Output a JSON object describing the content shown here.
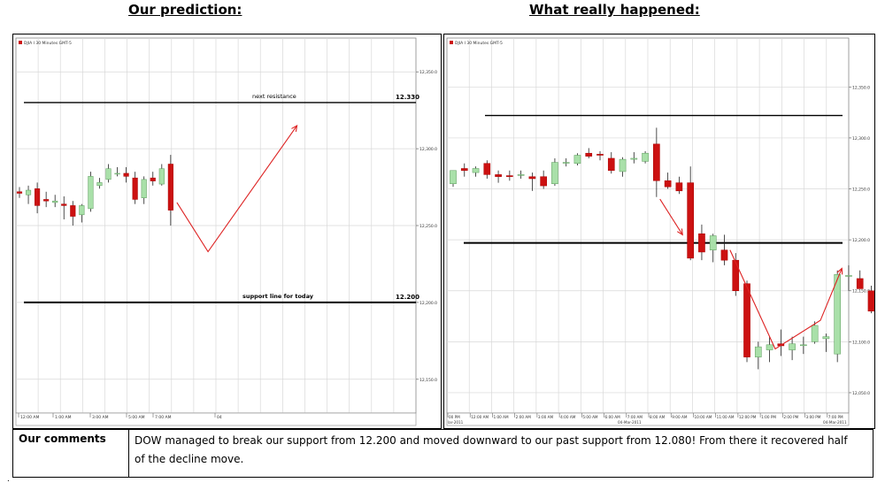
{
  "titles": {
    "left": "Our prediction:",
    "right": "What really happened:"
  },
  "comments": {
    "label": "Our comments",
    "text": "DOW managed to break our support from 12.200 and moved downward to our past support from 12.080! From there it recovered half of the decline move."
  },
  "colors": {
    "up": "#a9e0a9",
    "down": "#cc1111",
    "trend_arrow": "#dd2222",
    "grid": "#d8d8d8",
    "level_line": "#000000"
  },
  "chart_data": [
    {
      "type": "candlestick",
      "title": "Our prediction:",
      "instrument_label": "DJIA I 30 Minutes GMT-5",
      "y_ticks": [
        "12,350.0",
        "12,300.0",
        "12,250.0",
        "12,200.0",
        "12,150.0"
      ],
      "ylim": [
        12128,
        12372
      ],
      "x_ticks": [
        "12:00 AM",
        "1:00 AM",
        "3:00 AM",
        "5:00 AM",
        "7:00 AM",
        "04"
      ],
      "candles": [
        {
          "o": 12272,
          "h": 12275,
          "l": 12268,
          "c": 12271
        },
        {
          "o": 12270,
          "h": 12276,
          "l": 12264,
          "c": 12273
        },
        {
          "o": 12274,
          "h": 12278,
          "l": 12258,
          "c": 12263
        },
        {
          "o": 12267,
          "h": 12272,
          "l": 12262,
          "c": 12266
        },
        {
          "o": 12265,
          "h": 12270,
          "l": 12262,
          "c": 12266
        },
        {
          "o": 12264,
          "h": 12269,
          "l": 12254,
          "c": 12263
        },
        {
          "o": 12263,
          "h": 12266,
          "l": 12250,
          "c": 12256
        },
        {
          "o": 12257,
          "h": 12264,
          "l": 12252,
          "c": 12263
        },
        {
          "o": 12261,
          "h": 12285,
          "l": 12259,
          "c": 12282
        },
        {
          "o": 12276,
          "h": 12281,
          "l": 12274,
          "c": 12278
        },
        {
          "o": 12280,
          "h": 12290,
          "l": 12278,
          "c": 12287
        },
        {
          "o": 12284,
          "h": 12288,
          "l": 12282,
          "c": 12284
        },
        {
          "o": 12284,
          "h": 12288,
          "l": 12278,
          "c": 12282
        },
        {
          "o": 12281,
          "h": 12285,
          "l": 12264,
          "c": 12267
        },
        {
          "o": 12268,
          "h": 12282,
          "l": 12264,
          "c": 12280
        },
        {
          "o": 12281,
          "h": 12285,
          "l": 12276,
          "c": 12279
        },
        {
          "o": 12277,
          "h": 12290,
          "l": 12276,
          "c": 12287
        },
        {
          "o": 12290,
          "h": 12296,
          "l": 12250,
          "c": 12260
        }
      ],
      "levels": [
        {
          "value": 12330,
          "label": "next resistance",
          "value_label": "12.330",
          "label_weight": "normal"
        },
        {
          "value": 12200,
          "label": "support line for today",
          "value_label": "12.200",
          "label_weight": "bold"
        }
      ],
      "trend_path": [
        {
          "i": 17.7,
          "y": 12265
        },
        {
          "i": 21.2,
          "y": 12233
        },
        {
          "i": 31.2,
          "y": 12315
        }
      ]
    },
    {
      "type": "candlestick",
      "title": "What really happened:",
      "instrument_label": "DJIA I 30 Minutes GMT-5",
      "y_ticks": [
        "12,350.0",
        "12,300.0",
        "12,250.0",
        "12,200.0",
        "12,150.0",
        "12,100.0",
        "12,050.0"
      ],
      "ylim": [
        12030,
        12398
      ],
      "x_ticks": [
        "00 PM",
        "12:00 AM",
        "1:00 AM",
        "2:00 AM",
        "3:00 AM",
        "4:00 AM",
        "5:00 AM",
        "6:00 AM",
        "7:00 AM",
        "8:00 AM",
        "9:00 AM",
        "10:00 AM",
        "11:00 AM",
        "12:00 PM",
        "1:00 PM",
        "2:00 PM",
        "3:00 PM",
        "7:00 PM"
      ],
      "x_subticks": [
        "lar-2011",
        "04-Mar-2011",
        "04-Mar-2011"
      ],
      "candles": [
        {
          "o": 12255,
          "h": 12265,
          "l": 12252,
          "c": 12268
        },
        {
          "o": 12270,
          "h": 12275,
          "l": 12262,
          "c": 12268
        },
        {
          "o": 12266,
          "h": 12272,
          "l": 12262,
          "c": 12270
        },
        {
          "o": 12275,
          "h": 12278,
          "l": 12260,
          "c": 12264
        },
        {
          "o": 12264,
          "h": 12268,
          "l": 12256,
          "c": 12262
        },
        {
          "o": 12263,
          "h": 12268,
          "l": 12258,
          "c": 12262
        },
        {
          "o": 12264,
          "h": 12268,
          "l": 12260,
          "c": 12264
        },
        {
          "o": 12262,
          "h": 12266,
          "l": 12248,
          "c": 12260
        },
        {
          "o": 12262,
          "h": 12268,
          "l": 12250,
          "c": 12253
        },
        {
          "o": 12255,
          "h": 12280,
          "l": 12253,
          "c": 12276
        },
        {
          "o": 12276,
          "h": 12280,
          "l": 12272,
          "c": 12276
        },
        {
          "o": 12275,
          "h": 12285,
          "l": 12273,
          "c": 12283
        },
        {
          "o": 12285,
          "h": 12290,
          "l": 12280,
          "c": 12282
        },
        {
          "o": 12284,
          "h": 12287,
          "l": 12278,
          "c": 12283
        },
        {
          "o": 12280,
          "h": 12286,
          "l": 12265,
          "c": 12268
        },
        {
          "o": 12267,
          "h": 12281,
          "l": 12262,
          "c": 12279
        },
        {
          "o": 12279,
          "h": 12286,
          "l": 12275,
          "c": 12280
        },
        {
          "o": 12277,
          "h": 12287,
          "l": 12275,
          "c": 12285
        },
        {
          "o": 12294,
          "h": 12310,
          "l": 12242,
          "c": 12258
        },
        {
          "o": 12258,
          "h": 12266,
          "l": 12250,
          "c": 12252
        },
        {
          "o": 12256,
          "h": 12262,
          "l": 12245,
          "c": 12248
        },
        {
          "o": 12256,
          "h": 12272,
          "l": 12180,
          "c": 12182
        },
        {
          "o": 12206,
          "h": 12215,
          "l": 12180,
          "c": 12188
        },
        {
          "o": 12190,
          "h": 12206,
          "l": 12178,
          "c": 12204
        },
        {
          "o": 12190,
          "h": 12205,
          "l": 12175,
          "c": 12180
        },
        {
          "o": 12180,
          "h": 12187,
          "l": 12145,
          "c": 12150
        },
        {
          "o": 12157,
          "h": 12160,
          "l": 12080,
          "c": 12085
        },
        {
          "o": 12085,
          "h": 12100,
          "l": 12073,
          "c": 12095
        },
        {
          "o": 12092,
          "h": 12105,
          "l": 12080,
          "c": 12097
        },
        {
          "o": 12098,
          "h": 12112,
          "l": 12086,
          "c": 12096
        },
        {
          "o": 12092,
          "h": 12105,
          "l": 12082,
          "c": 12098
        },
        {
          "o": 12097,
          "h": 12105,
          "l": 12088,
          "c": 12097
        },
        {
          "o": 12100,
          "h": 12120,
          "l": 12098,
          "c": 12116
        },
        {
          "o": 12103,
          "h": 12108,
          "l": 12090,
          "c": 12105
        },
        {
          "o": 12088,
          "h": 12170,
          "l": 12080,
          "c": 12166
        },
        {
          "o": 12165,
          "h": 12175,
          "l": 12150,
          "c": 12165
        },
        {
          "o": 12162,
          "h": 12170,
          "l": 12152,
          "c": 12152
        },
        {
          "o": 12150,
          "h": 12155,
          "l": 12128,
          "c": 12130
        }
      ],
      "levels": [
        {
          "value": 12322,
          "label": "",
          "value_label": "",
          "label_weight": "normal"
        },
        {
          "value": 12197,
          "label": "",
          "value_label": "",
          "label_weight": "normal"
        }
      ],
      "trend_path": [
        {
          "i": 18.3,
          "y": 12240
        },
        {
          "i": 20.3,
          "y": 12205
        }
      ],
      "trend_path_2": [
        {
          "i": 24.5,
          "y": 12190
        },
        {
          "i": 28.5,
          "y": 12093
        },
        {
          "i": 32.5,
          "y": 12121
        },
        {
          "i": 34.4,
          "y": 12172
        }
      ]
    }
  ]
}
